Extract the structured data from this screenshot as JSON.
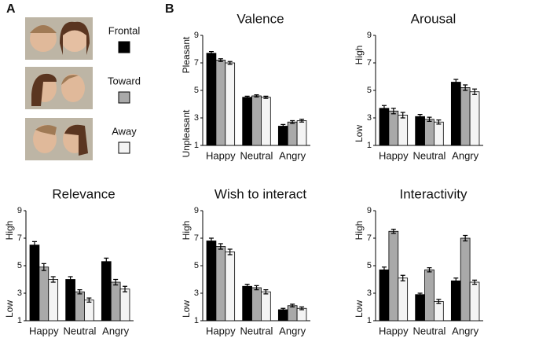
{
  "panel_a": {
    "label": "A",
    "conditions": [
      {
        "name": "Frontal",
        "color": "#000000"
      },
      {
        "name": "Toward",
        "color": "#a9a9a9"
      },
      {
        "name": "Away",
        "color": "#f4f4f4"
      }
    ]
  },
  "panel_b": {
    "label": "B"
  },
  "chart_data": [
    {
      "type": "bar",
      "title": "Valence",
      "categories": [
        "Happy",
        "Neutral",
        "Angry"
      ],
      "y_label_high": "Pleasant",
      "y_label_low": "Unpleasant",
      "ylim": [
        1,
        9
      ],
      "yticks": [
        1,
        3,
        5,
        7,
        9
      ],
      "series": [
        {
          "values": [
            7.7,
            4.5,
            2.4
          ],
          "errors": [
            0.12,
            0.08,
            0.12
          ]
        },
        {
          "values": [
            7.2,
            4.6,
            2.7
          ],
          "errors": [
            0.1,
            0.08,
            0.1
          ]
        },
        {
          "values": [
            7.0,
            4.5,
            2.8
          ],
          "errors": [
            0.1,
            0.08,
            0.1
          ]
        }
      ]
    },
    {
      "type": "bar",
      "title": "Arousal",
      "categories": [
        "Happy",
        "Neutral",
        "Angry"
      ],
      "y_label_high": "High",
      "y_label_low": "Low",
      "ylim": [
        1,
        9
      ],
      "yticks": [
        1,
        3,
        5,
        7,
        9
      ],
      "series": [
        {
          "values": [
            3.7,
            3.1,
            5.6
          ],
          "errors": [
            0.2,
            0.15,
            0.2
          ]
        },
        {
          "values": [
            3.5,
            2.9,
            5.2
          ],
          "errors": [
            0.2,
            0.15,
            0.2
          ]
        },
        {
          "values": [
            3.2,
            2.7,
            4.9
          ],
          "errors": [
            0.2,
            0.15,
            0.2
          ]
        }
      ]
    },
    {
      "type": "bar",
      "title": "Relevance",
      "categories": [
        "Happy",
        "Neutral",
        "Angry"
      ],
      "y_label_high": "High",
      "y_label_low": "Low",
      "ylim": [
        1,
        9
      ],
      "yticks": [
        1,
        3,
        5,
        7,
        9
      ],
      "series": [
        {
          "values": [
            6.5,
            4.0,
            5.3
          ],
          "errors": [
            0.25,
            0.2,
            0.25
          ]
        },
        {
          "values": [
            4.9,
            3.1,
            3.8
          ],
          "errors": [
            0.25,
            0.15,
            0.2
          ]
        },
        {
          "values": [
            4.0,
            2.5,
            3.3
          ],
          "errors": [
            0.2,
            0.15,
            0.2
          ]
        }
      ]
    },
    {
      "type": "bar",
      "title": "Wish to interact",
      "categories": [
        "Happy",
        "Neutral",
        "Angry"
      ],
      "y_label_high": "High",
      "y_label_low": "Low",
      "ylim": [
        1,
        9
      ],
      "yticks": [
        1,
        3,
        5,
        7,
        9
      ],
      "series": [
        {
          "values": [
            6.8,
            3.5,
            1.8
          ],
          "errors": [
            0.2,
            0.15,
            0.1
          ]
        },
        {
          "values": [
            6.4,
            3.4,
            2.1
          ],
          "errors": [
            0.2,
            0.15,
            0.1
          ]
        },
        {
          "values": [
            6.0,
            3.1,
            1.9
          ],
          "errors": [
            0.2,
            0.15,
            0.1
          ]
        }
      ]
    },
    {
      "type": "bar",
      "title": "Interactivity",
      "categories": [
        "Happy",
        "Neutral",
        "Angry"
      ],
      "y_label_high": "High",
      "y_label_low": "Low",
      "ylim": [
        1,
        9
      ],
      "yticks": [
        1,
        3,
        5,
        7,
        9
      ],
      "series": [
        {
          "values": [
            4.7,
            2.9,
            3.9
          ],
          "errors": [
            0.2,
            0.1,
            0.2
          ]
        },
        {
          "values": [
            7.5,
            4.7,
            7.0
          ],
          "errors": [
            0.15,
            0.15,
            0.2
          ]
        },
        {
          "values": [
            4.1,
            2.4,
            3.8
          ],
          "errors": [
            0.2,
            0.15,
            0.15
          ]
        }
      ]
    }
  ]
}
